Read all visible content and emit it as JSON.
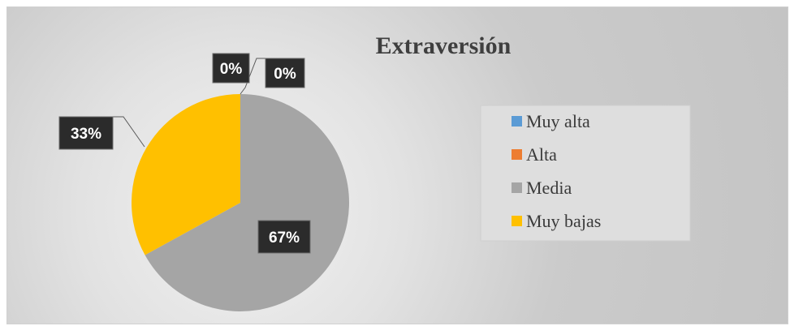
{
  "chart_data": {
    "type": "pie",
    "title": "Extraversión",
    "categories": [
      "Muy alta",
      "Alta",
      "Media",
      "Muy bajas"
    ],
    "values": [
      0,
      0,
      67,
      33
    ],
    "labels": [
      "0%",
      "0%",
      "67%",
      "33%"
    ],
    "colors": [
      "#5b9bd5",
      "#ed7d31",
      "#a5a5a5",
      "#ffc000"
    ],
    "legend_position": "right",
    "data_label_style": "dark boxes with white bold text, leader lines"
  }
}
